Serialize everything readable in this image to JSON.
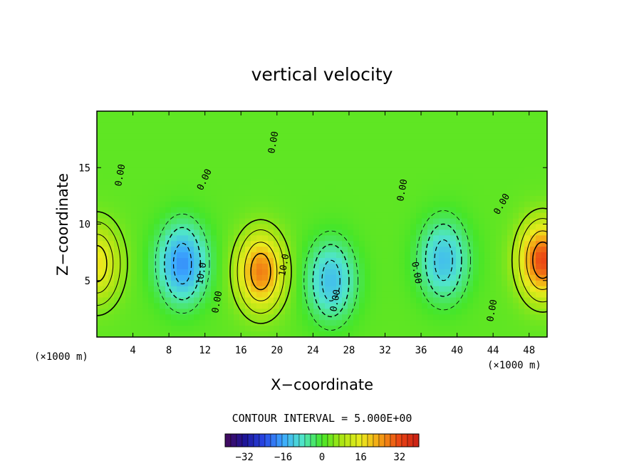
{
  "chart_data": {
    "type": "heatmap",
    "title": "vertical velocity",
    "xlabel": "X−coordinate",
    "ylabel": "Z−coordinate",
    "x_unit": "(×1000 m)",
    "xlim": [
      0,
      50
    ],
    "ylim": [
      0,
      20
    ],
    "x_ticks": [
      "4",
      "8",
      "12",
      "16",
      "20",
      "24",
      "28",
      "32",
      "36",
      "40",
      "44",
      "48"
    ],
    "y_ticks": [
      "5",
      "10",
      "15"
    ],
    "contour_interval_text": "CONTOUR INTERVAL = 5.000E+00",
    "colorbar": {
      "min": -40,
      "max": 40,
      "ticks": [
        "−32",
        "−16",
        "0",
        "16",
        "32"
      ]
    },
    "contour_labels": [
      "0.00",
      "0.00",
      "0.00",
      "0.00",
      "0.00",
      "0.00",
      "0.00",
      "0.00",
      "0.00",
      "10.0",
      "10.0"
    ],
    "features": [
      {
        "kind": "updraft",
        "x": 18.2,
        "z": 5.8,
        "peak": 25
      },
      {
        "kind": "updraft",
        "x": 49.5,
        "z": 6.8,
        "peak": 30
      },
      {
        "kind": "updraft",
        "x": 0,
        "z": 6.5,
        "peak": 15
      },
      {
        "kind": "downdraft",
        "x": 9.5,
        "z": 6.5,
        "peak": -20
      },
      {
        "kind": "downdraft",
        "x": 26.0,
        "z": 5.0,
        "peak": -15
      },
      {
        "kind": "downdraft",
        "x": 38.5,
        "z": 6.8,
        "peak": -15
      }
    ]
  }
}
